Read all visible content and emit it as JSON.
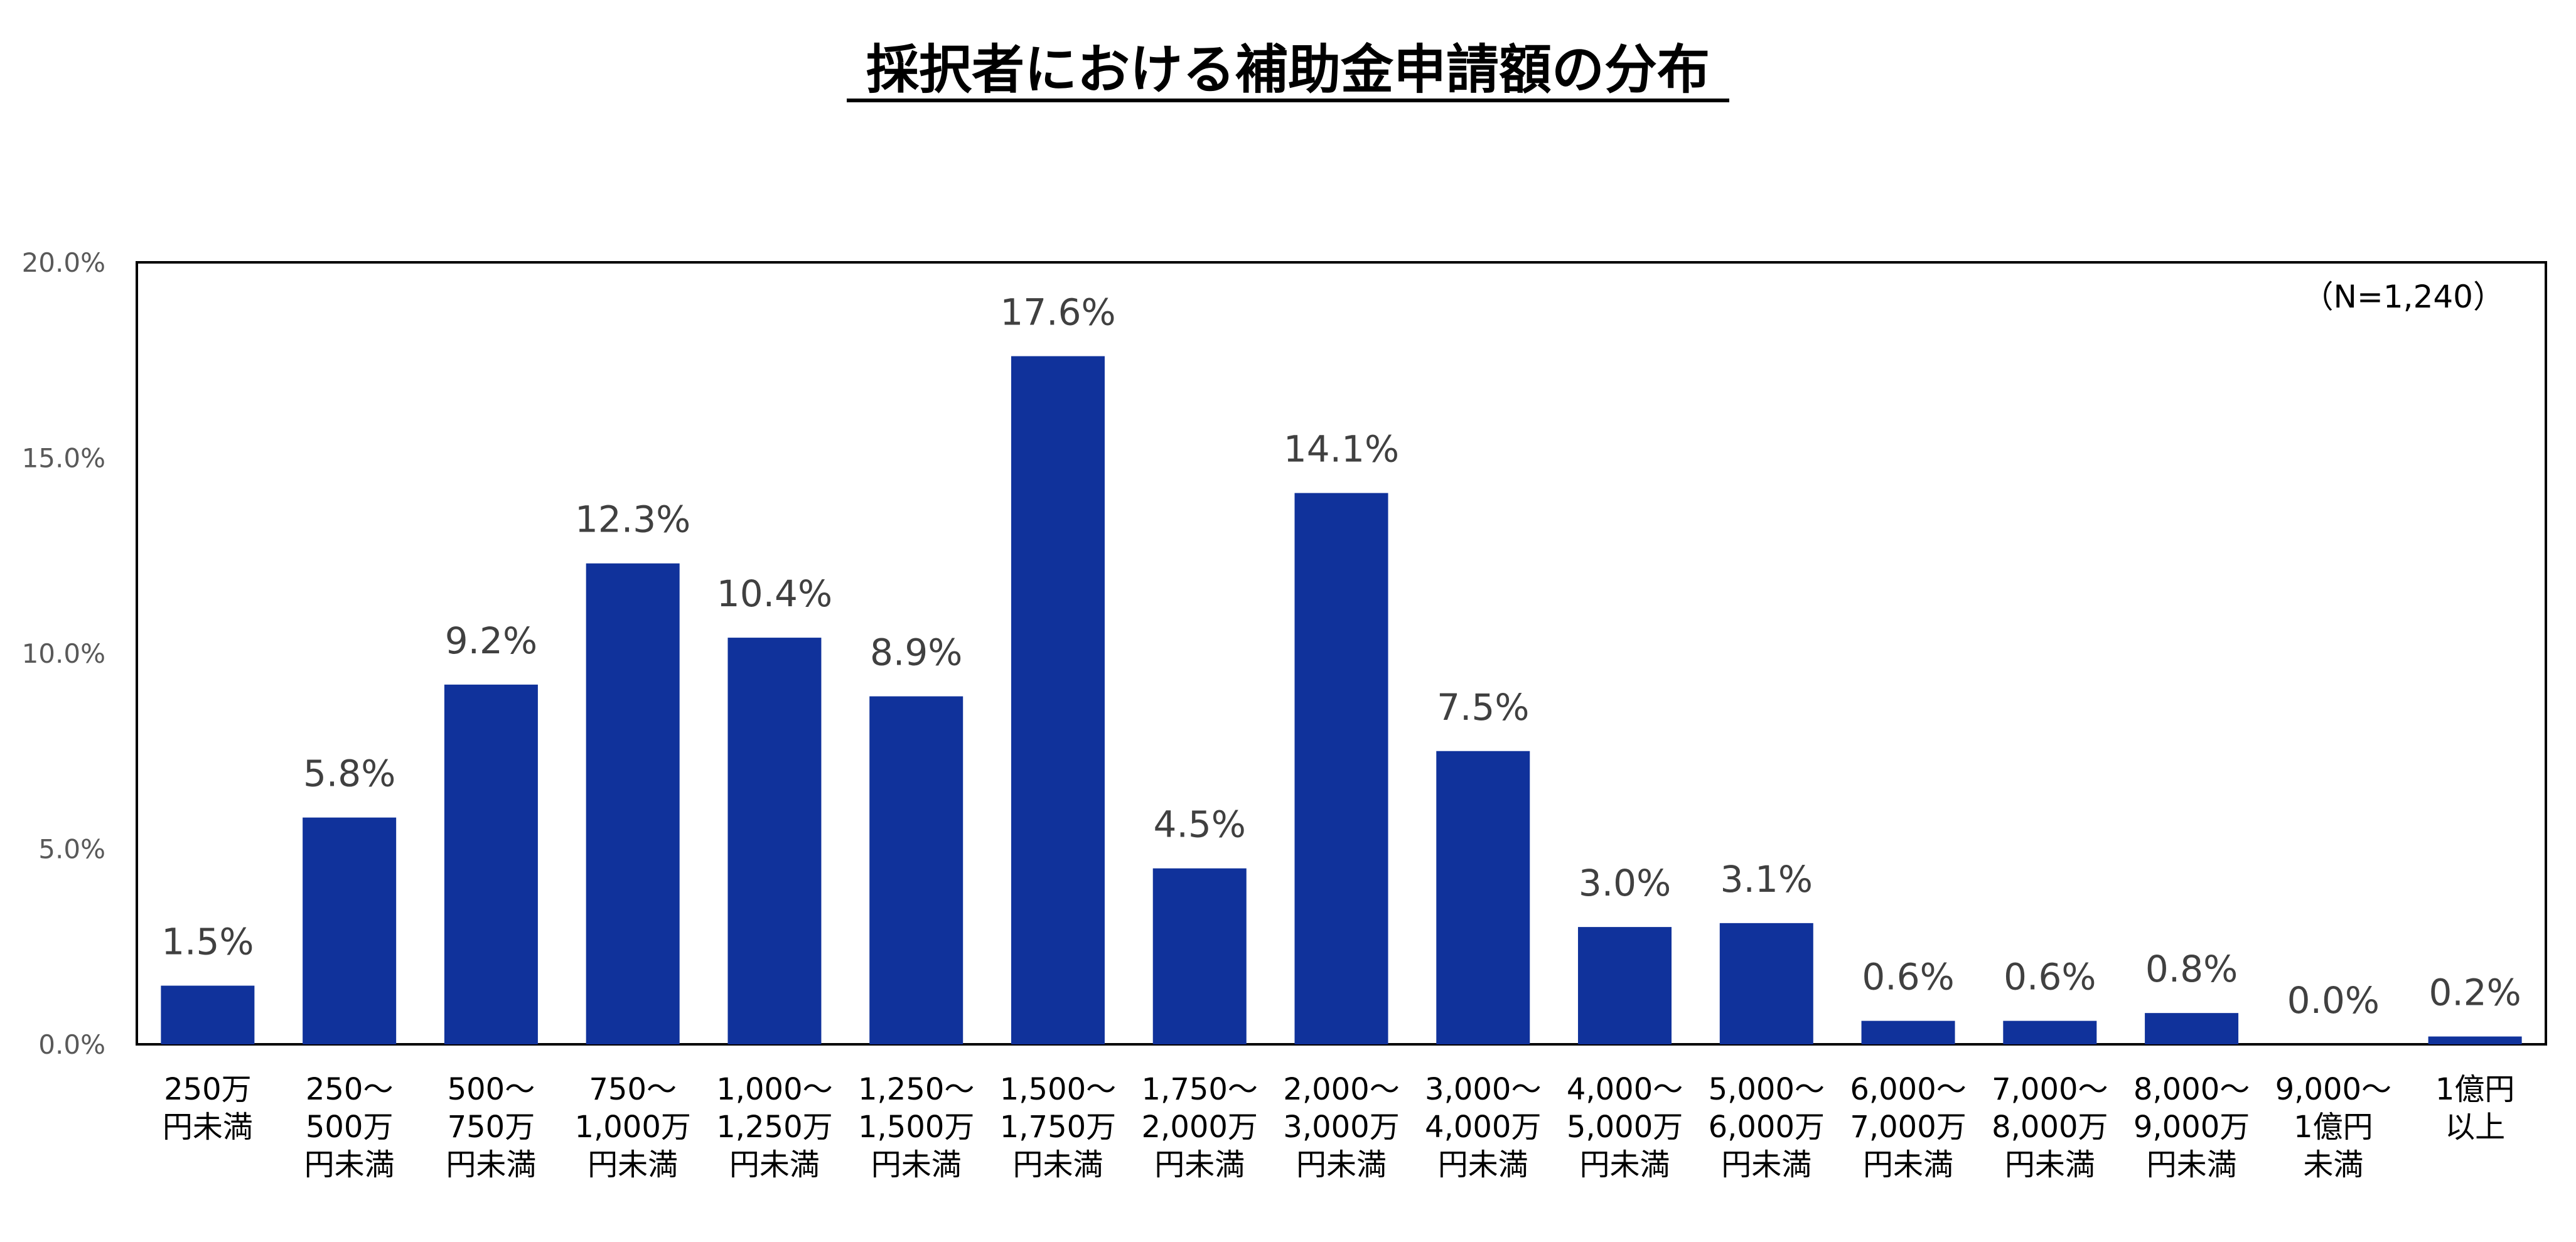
{
  "chart_data": {
    "type": "bar",
    "title": "採択者における補助金申請額の分布",
    "note": "（N=1,240）",
    "categories": [
      [
        "250万",
        "円未満"
      ],
      [
        "250〜",
        "500万",
        "円未満"
      ],
      [
        "500〜",
        "750万",
        "円未満"
      ],
      [
        "750〜",
        "1,000万",
        "円未満"
      ],
      [
        "1,000〜",
        "1,250万",
        "円未満"
      ],
      [
        "1,250〜",
        "1,500万",
        "円未満"
      ],
      [
        "1,500〜",
        "1,750万",
        "円未満"
      ],
      [
        "1,750〜",
        "2,000万",
        "円未満"
      ],
      [
        "2,000〜",
        "3,000万",
        "円未満"
      ],
      [
        "3,000〜",
        "4,000万",
        "円未満"
      ],
      [
        "4,000〜",
        "5,000万",
        "円未満"
      ],
      [
        "5,000〜",
        "6,000万",
        "円未満"
      ],
      [
        "6,000〜",
        "7,000万",
        "円未満"
      ],
      [
        "7,000〜",
        "8,000万",
        "円未満"
      ],
      [
        "8,000〜",
        "9,000万",
        "円未満"
      ],
      [
        "9,000〜",
        "1億円",
        "未満"
      ],
      [
        "1億円",
        "以上"
      ]
    ],
    "values": [
      1.5,
      5.8,
      9.2,
      12.3,
      10.4,
      8.9,
      17.6,
      4.5,
      14.1,
      7.5,
      3.0,
      3.1,
      0.6,
      0.6,
      0.8,
      0.0,
      0.2
    ],
    "data_labels": [
      "1.5%",
      "5.8%",
      "9.2%",
      "12.3%",
      "10.4%",
      "8.9%",
      "17.6%",
      "4.5%",
      "14.1%",
      "7.5%",
      "3.0%",
      "3.1%",
      "0.6%",
      "0.6%",
      "0.8%",
      "0.0%",
      "0.2%"
    ],
    "y_ticks": [
      0,
      5,
      10,
      15,
      20
    ],
    "y_tick_labels": [
      "0.0%",
      "5.0%",
      "10.0%",
      "15.0%",
      "20.0%"
    ],
    "ylim": [
      0,
      20
    ],
    "xlabel": "",
    "ylabel": "",
    "grid": false,
    "bar_color": "#10329B"
  }
}
